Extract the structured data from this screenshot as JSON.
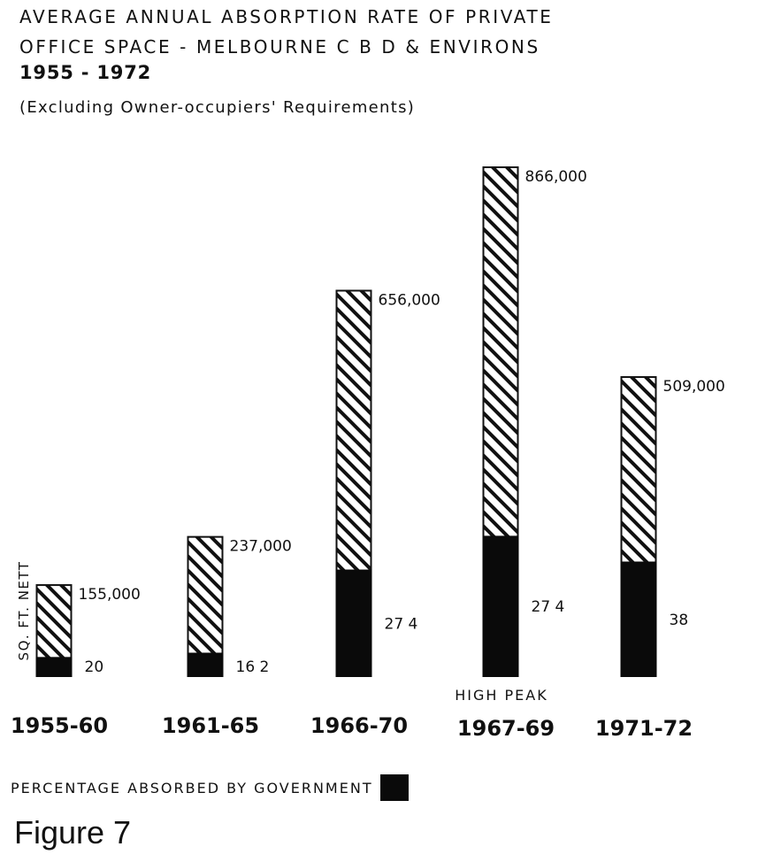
{
  "chart_data": {
    "type": "bar",
    "title": [
      "AVERAGE  ANNUAL  ABSORPTION  RATE  OF  PRIVATE",
      "OFFICE  SPACE  -  MELBOURNE  C B D  & ENVIRONS"
    ],
    "subtitle": "1955 - 1972",
    "note": "(Excluding  Owner-occupiers' Requirements)",
    "ylabel": "SQ. FT. NETT",
    "stacked": true,
    "categories": [
      "1955-60",
      "1961-65",
      "1966-70",
      "1967-69",
      "1971-72"
    ],
    "category_notes": [
      "",
      "",
      "",
      "HIGH  PEAK",
      ""
    ],
    "values": [
      155000,
      237000,
      656000,
      866000,
      509000
    ],
    "value_labels": [
      "155,000",
      "237,000",
      "656,000",
      "866,000",
      "509,000"
    ],
    "government_percent": [
      20,
      16.2,
      27.4,
      27.4,
      38
    ],
    "government_percent_labels": [
      "20",
      "16 2",
      "27 4",
      "27 4",
      "38"
    ],
    "series": [
      {
        "name": "PERCENTAGE  ABSORBED  BY  GOVERNMENT",
        "fill": "solid",
        "color": "#0a0a0a"
      },
      {
        "fill": "diagonal-hatch",
        "color": "#111111"
      }
    ],
    "ylim": [
      0,
      866000
    ],
    "grid": false,
    "legend_position": "bottom-left"
  },
  "legend": {
    "label": "PERCENTAGE  ABSORBED  BY  GOVERNMENT"
  },
  "figure_caption": "Figure 7"
}
